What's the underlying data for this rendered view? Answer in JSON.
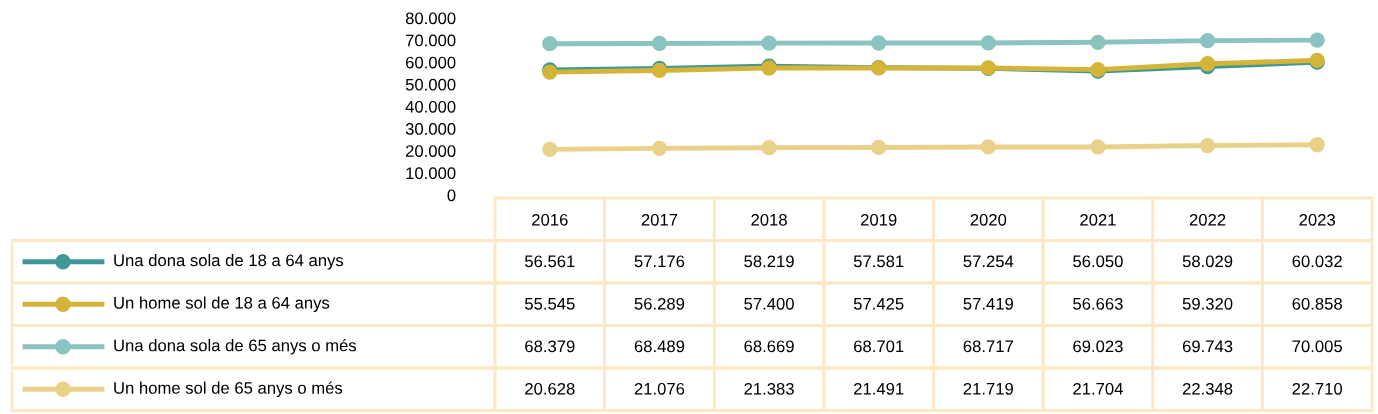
{
  "chart_data": {
    "type": "line",
    "categories": [
      "2016",
      "2017",
      "2018",
      "2019",
      "2020",
      "2021",
      "2022",
      "2023"
    ],
    "series": [
      {
        "name": "Una dona sola de 18 a 64 anys",
        "color": "#3f9896",
        "values": [
          56561,
          57176,
          58219,
          57581,
          57254,
          56050,
          58029,
          60032
        ],
        "value_labels": [
          "56.561",
          "57.176",
          "58.219",
          "57.581",
          "57.254",
          "56.050",
          "58.029",
          "60.032"
        ]
      },
      {
        "name": "Un home sol de 18 a 64 anys",
        "color": "#d4b53a",
        "values": [
          55545,
          56289,
          57400,
          57425,
          57419,
          56663,
          59320,
          60858
        ],
        "value_labels": [
          "55.545",
          "56.289",
          "57.400",
          "57.425",
          "57.419",
          "56.663",
          "59.320",
          "60.858"
        ]
      },
      {
        "name": "Una dona sola de 65 anys o més",
        "color": "#8ac3bf",
        "values": [
          68379,
          68489,
          68669,
          68701,
          68717,
          69023,
          69743,
          70005
        ],
        "value_labels": [
          "68.379",
          "68.489",
          "68.669",
          "68.701",
          "68.717",
          "69.023",
          "69.743",
          "70.005"
        ]
      },
      {
        "name": "Un home sol de 65 anys o més",
        "color": "#ead18a",
        "values": [
          20628,
          21076,
          21383,
          21491,
          21719,
          21704,
          22348,
          22710
        ],
        "value_labels": [
          "20.628",
          "21.076",
          "21.383",
          "21.491",
          "21.719",
          "21.704",
          "22.348",
          "22.710"
        ]
      }
    ],
    "ylim": [
      0,
      80000
    ],
    "yticks": [
      0,
      {
        "value": 10000,
        "label": "10.000"
      },
      {
        "value": 20000,
        "label": "20.000"
      },
      {
        "value": 30000,
        "label": "30.000"
      },
      {
        "value": 40000,
        "label": "40.000"
      },
      {
        "value": 50000,
        "label": "50.000"
      },
      {
        "value": 60000,
        "label": "60.000"
      },
      {
        "value": 70000,
        "label": "70.000"
      },
      {
        "value": 80000,
        "label": "80.000"
      }
    ],
    "grid": false,
    "marker": "circle",
    "line_style": "solid",
    "legend": "bottom left"
  }
}
